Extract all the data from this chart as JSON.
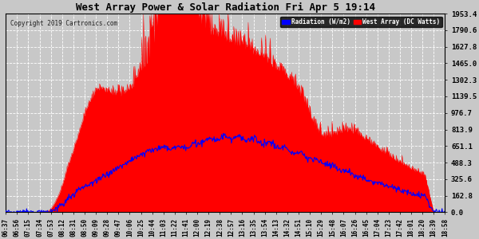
{
  "title": "West Array Power & Solar Radiation Fri Apr 5 19:14",
  "copyright": "Copyright 2019 Cartronics.com",
  "legend_radiation": "Radiation (W/m2)",
  "legend_west": "West Array (DC Watts)",
  "yticks": [
    0.0,
    162.8,
    325.6,
    488.3,
    651.1,
    813.9,
    976.7,
    1139.5,
    1302.3,
    1465.0,
    1627.8,
    1790.6,
    1953.4
  ],
  "ymax": 1953.4,
  "ymin": 0.0,
  "background_color": "#c8c8c8",
  "plot_bg_color": "#c8c8c8",
  "red_fill_color": "#ff0000",
  "blue_line_color": "#0000ff",
  "grid_color": "#ffffff",
  "title_color": "#000000",
  "xtick_labels": [
    "06:37",
    "06:56",
    "07:15",
    "07:34",
    "07:53",
    "08:12",
    "08:31",
    "08:50",
    "09:09",
    "09:28",
    "09:47",
    "10:06",
    "10:25",
    "10:44",
    "11:03",
    "11:22",
    "11:41",
    "12:00",
    "12:19",
    "12:38",
    "12:57",
    "13:16",
    "13:35",
    "13:54",
    "14:13",
    "14:32",
    "14:51",
    "15:10",
    "15:29",
    "15:48",
    "16:07",
    "16:26",
    "16:45",
    "17:04",
    "17:23",
    "17:42",
    "18:01",
    "18:20",
    "18:39",
    "18:58"
  ]
}
